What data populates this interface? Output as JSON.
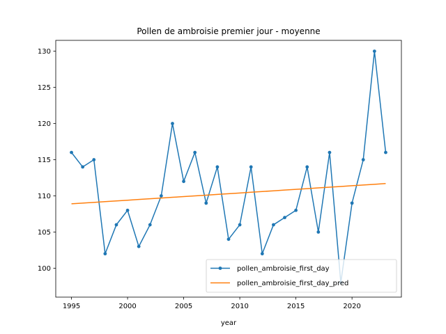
{
  "chart_data": {
    "type": "line",
    "title": "Pollen de ambroisie premier jour - moyenne",
    "xlabel": "year",
    "ylabel": "",
    "xlim": [
      1993.6,
      2024.4
    ],
    "ylim": [
      96.0,
      131.5
    ],
    "xticks": [
      1995,
      2000,
      2005,
      2010,
      2015,
      2020
    ],
    "yticks": [
      100,
      105,
      110,
      115,
      120,
      125,
      130
    ],
    "grid": false,
    "legend_position": "lower-right",
    "x": [
      1995,
      1996,
      1997,
      1998,
      1999,
      2000,
      2001,
      2002,
      2003,
      2004,
      2005,
      2006,
      2007,
      2008,
      2009,
      2010,
      2011,
      2012,
      2013,
      2014,
      2015,
      2016,
      2017,
      2018,
      2019,
      2020,
      2021,
      2022,
      2023
    ],
    "series": [
      {
        "name": "pollen_ambroisie_first_day",
        "color": "#1f77b4",
        "marker": true,
        "values": [
          116,
          114,
          115,
          102,
          106,
          108,
          103,
          106,
          110,
          120,
          112,
          116,
          109,
          114,
          104,
          106,
          114,
          102,
          106,
          107,
          108,
          114,
          105,
          116,
          98,
          109,
          115,
          130,
          116
        ]
      },
      {
        "name": "pollen_ambroisie_first_day_pred",
        "color": "#ff7f0e",
        "marker": false,
        "values": [
          108.9,
          109.0,
          109.1,
          109.2,
          109.3,
          109.4,
          109.5,
          109.6,
          109.7,
          109.8,
          109.9,
          110.0,
          110.1,
          110.2,
          110.3,
          110.4,
          110.5,
          110.6,
          110.7,
          110.8,
          110.9,
          111.0,
          111.1,
          111.2,
          111.3,
          111.4,
          111.5,
          111.6,
          111.7
        ]
      }
    ]
  }
}
